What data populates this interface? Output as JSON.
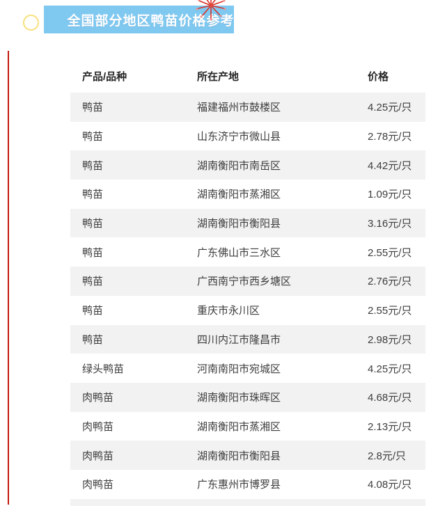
{
  "page": {
    "title": "全国部分地区鸭苗价格参考"
  },
  "colors": {
    "accent_red_line": "#c2170d",
    "title_banner_blue": "#7fc9f1",
    "title_text_white": "#ffffff",
    "circle_yellow": "#f7e07a",
    "row_stripe_gray": "#f2f2f2",
    "firework_red": "#e04a3f"
  },
  "decorations": {
    "firework_icon": "firework-burst",
    "circle_icon": "hollow-yellow-circle"
  },
  "table": {
    "columns": [
      {
        "key": "product",
        "label": "产品/品种"
      },
      {
        "key": "origin",
        "label": "所在产地"
      },
      {
        "key": "price",
        "label": "价格"
      }
    ],
    "rows": [
      {
        "product": "鸭苗",
        "origin": "福建福州市鼓楼区",
        "price": "4.25元/只"
      },
      {
        "product": "鸭苗",
        "origin": "山东济宁市微山县",
        "price": "2.78元/只"
      },
      {
        "product": "鸭苗",
        "origin": "湖南衡阳市南岳区",
        "price": "4.42元/只"
      },
      {
        "product": "鸭苗",
        "origin": "湖南衡阳市蒸湘区",
        "price": "1.09元/只"
      },
      {
        "product": "鸭苗",
        "origin": "湖南衡阳市衡阳县",
        "price": "3.16元/只"
      },
      {
        "product": "鸭苗",
        "origin": "广东佛山市三水区",
        "price": "2.55元/只"
      },
      {
        "product": "鸭苗",
        "origin": "广西南宁市西乡塘区",
        "price": "2.76元/只"
      },
      {
        "product": "鸭苗",
        "origin": "重庆市永川区",
        "price": "2.55元/只"
      },
      {
        "product": "鸭苗",
        "origin": "四川内江市隆昌市",
        "price": "2.98元/只"
      },
      {
        "product": "绿头鸭苗",
        "origin": "河南南阳市宛城区",
        "price": "4.25元/只"
      },
      {
        "product": "肉鸭苗",
        "origin": "湖南衡阳市珠晖区",
        "price": "4.68元/只"
      },
      {
        "product": "肉鸭苗",
        "origin": "湖南衡阳市蒸湘区",
        "price": "2.13元/只"
      },
      {
        "product": "肉鸭苗",
        "origin": "湖南衡阳市衡阳县",
        "price": "2.8元/只"
      },
      {
        "product": "肉鸭苗",
        "origin": "广东惠州市博罗县",
        "price": "4.08元/只"
      }
    ]
  }
}
